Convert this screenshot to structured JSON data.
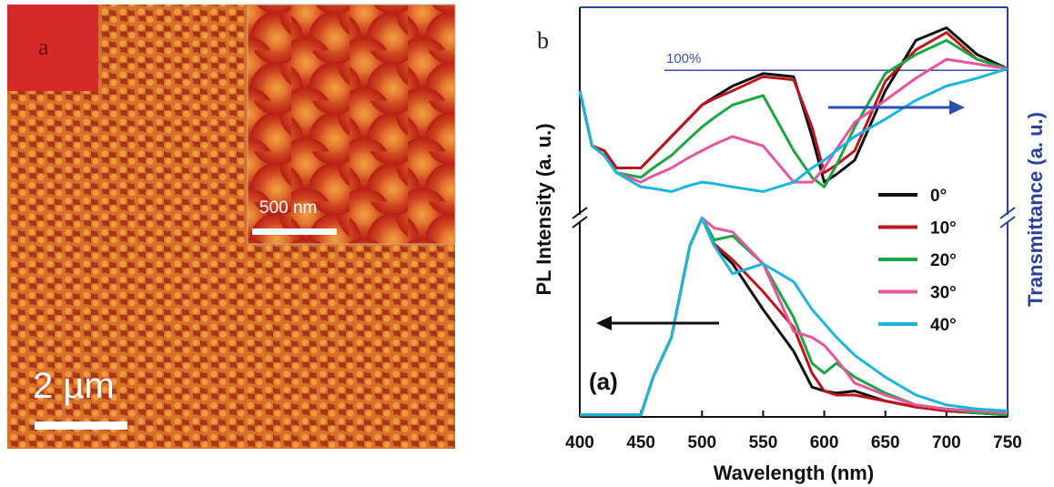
{
  "figure_a": {
    "label": "a",
    "scale_bar": "2 µm",
    "inset_scale_bar": "500 nm"
  },
  "chart_data": {
    "type": "line",
    "panel_label": "b",
    "xlabel": "Wavelength (nm)",
    "ylabel": "PL Intensity (a. u.)",
    "y2label": "Transmittance (a. u.)",
    "annotation": "(a)",
    "reference_label": "100%",
    "reference_value": 100,
    "x": [
      400,
      410,
      420,
      430,
      450,
      460,
      475,
      490,
      500,
      510,
      525,
      550,
      575,
      590,
      600,
      610,
      625,
      650,
      675,
      700,
      725,
      750
    ],
    "xlim": [
      400,
      750
    ],
    "xticks": [
      400,
      450,
      500,
      550,
      600,
      650,
      700,
      750
    ],
    "ylim": [
      0,
      2.06
    ],
    "y2lim": [
      -120,
      140
    ],
    "series": [
      {
        "name": "0°",
        "color": "#111111",
        "values": [
          0.01,
          0.01,
          0.01,
          0.01,
          0.01,
          0.2,
          0.4,
          0.86,
          1,
          0.86,
          0.77,
          0.54,
          0.33,
          0.15,
          0.13,
          0.12,
          0.13,
          0.08,
          0.05,
          0.03,
          0.02,
          0.01
        ],
        "y2_values": [
          87,
          52,
          49,
          38,
          38,
          46,
          58,
          70,
          78,
          83,
          90,
          98,
          96,
          58,
          29,
          34,
          43,
          87,
          119,
          127,
          110,
          101
        ]
      },
      {
        "name": "10°",
        "color": "#c0141c",
        "values": [
          0.01,
          0.01,
          0.01,
          0.01,
          0.01,
          0.2,
          0.4,
          0.86,
          1,
          0.87,
          0.79,
          0.63,
          0.45,
          0.22,
          0.13,
          0.11,
          0.11,
          0.08,
          0.05,
          0.03,
          0.02,
          0.01
        ],
        "y2_values": [
          87,
          52,
          49,
          38,
          38,
          46,
          58,
          70,
          78,
          82,
          87,
          96,
          94,
          64,
          35,
          40,
          49,
          93,
          113,
          124,
          107,
          101
        ]
      },
      {
        "name": "20°",
        "color": "#1aa640",
        "values": [
          0.01,
          0.01,
          0.01,
          0.01,
          0.01,
          0.2,
          0.4,
          0.86,
          1,
          0.89,
          0.91,
          0.77,
          0.5,
          0.27,
          0.22,
          0.27,
          0.2,
          0.12,
          0.06,
          0.04,
          0.02,
          0.01
        ],
        "y2_values": [
          87,
          52,
          46,
          35,
          32,
          38,
          46,
          57,
          64,
          70,
          78,
          84,
          49,
          32,
          26,
          40,
          64,
          98,
          110,
          119,
          107,
          101
        ]
      },
      {
        "name": "30°",
        "color": "#e8559e",
        "values": [
          0.01,
          0.01,
          0.01,
          0.01,
          0.01,
          0.2,
          0.4,
          0.86,
          1,
          0.95,
          0.93,
          0.77,
          0.43,
          0.4,
          0.36,
          0.29,
          0.17,
          0.11,
          0.06,
          0.04,
          0.03,
          0.02
        ],
        "y2_values": [
          87,
          52,
          46,
          35,
          29,
          33,
          38,
          45,
          49,
          53,
          58,
          52,
          29,
          29,
          38,
          50,
          67,
          81,
          95,
          107,
          104,
          101
        ]
      },
      {
        "name": "40°",
        "color": "#1ab6de",
        "values": [
          0.01,
          0.01,
          0.01,
          0.01,
          0.01,
          0.2,
          0.4,
          0.86,
          1,
          0.86,
          0.72,
          0.77,
          0.68,
          0.54,
          0.47,
          0.4,
          0.31,
          0.2,
          0.11,
          0.06,
          0.04,
          0.03
        ],
        "y2_values": [
          87,
          52,
          46,
          35,
          26,
          25,
          23,
          27,
          29,
          28,
          26,
          23,
          29,
          38,
          43,
          49,
          58,
          69,
          81,
          90,
          95,
          101
        ]
      }
    ]
  }
}
